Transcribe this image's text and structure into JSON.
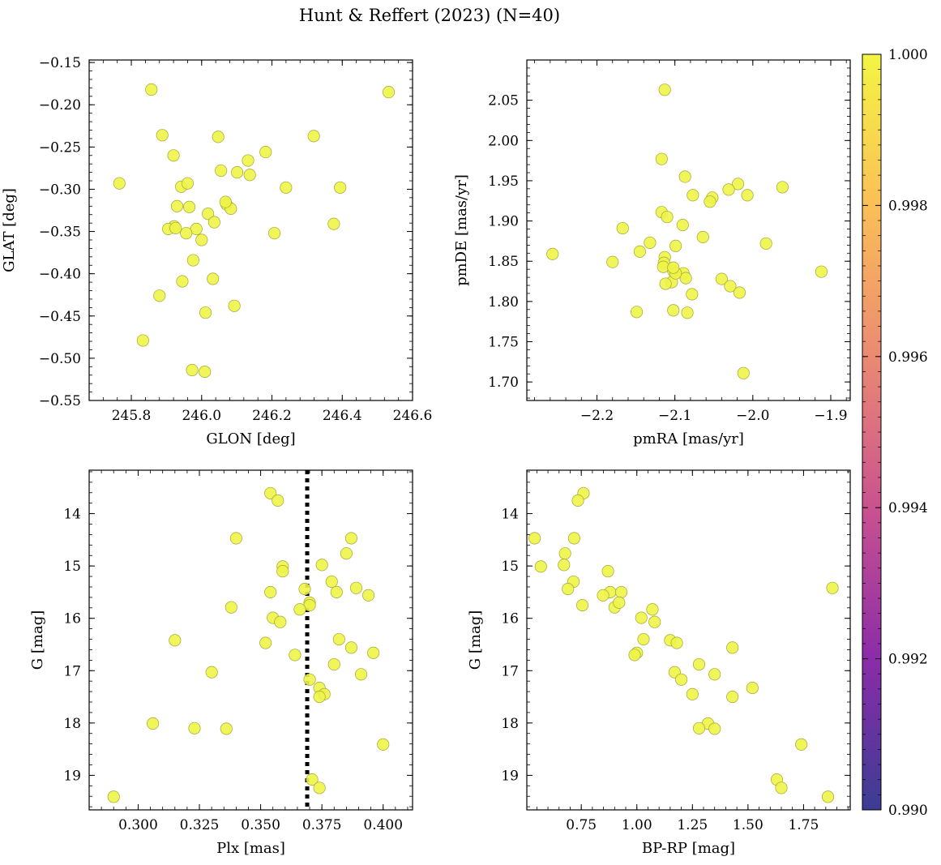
{
  "figure": {
    "title": "Hunt & Reffert (2023) (N=40)"
  },
  "colorbar": {
    "ticks": [
      "1.000",
      "0.998",
      "0.996",
      "0.994",
      "0.992",
      "0.990"
    ],
    "range": [
      0.99,
      1.0
    ],
    "colors": [
      "#3b3d92",
      "#8b2ca8",
      "#c9528f",
      "#ea8a72",
      "#fbbf57",
      "#f3f543"
    ]
  },
  "point_style": {
    "fill": "#eef447",
    "stroke": "#a3a636"
  },
  "chart_data": [
    {
      "type": "scatter",
      "name": "position",
      "xlabel": "GLON [deg]",
      "ylabel": "GLAT [deg]",
      "xlim": [
        245.68,
        246.6
      ],
      "ylim": [
        -0.55,
        -0.147
      ],
      "xticks": [
        "245.8",
        "246.0",
        "246.2",
        "246.4",
        "246.6"
      ],
      "yticks": [
        "−0.15",
        "−0.20",
        "−0.25",
        "−0.30",
        "−0.35",
        "−0.40",
        "−0.45",
        "−0.50",
        "−0.55"
      ],
      "x": [
        245.857,
        246.532,
        245.888,
        246.047,
        246.319,
        245.92,
        246.182,
        246.132,
        245.766,
        246.055,
        246.101,
        246.137,
        245.942,
        245.96,
        246.24,
        246.394,
        245.93,
        245.965,
        246.071,
        246.083,
        246.018,
        246.036,
        245.922,
        245.905,
        245.985,
        246.376,
        245.956,
        246.207,
        246.0,
        245.976,
        246.032,
        245.945,
        245.88,
        246.093,
        246.011,
        245.833,
        245.973,
        246.009,
        245.926,
        246.068
      ],
      "y": [
        -0.182,
        -0.185,
        -0.236,
        -0.238,
        -0.237,
        -0.26,
        -0.256,
        -0.266,
        -0.293,
        -0.278,
        -0.28,
        -0.283,
        -0.297,
        -0.293,
        -0.298,
        -0.298,
        -0.32,
        -0.321,
        -0.318,
        -0.323,
        -0.329,
        -0.339,
        -0.344,
        -0.347,
        -0.347,
        -0.341,
        -0.352,
        -0.352,
        -0.36,
        -0.384,
        -0.406,
        -0.409,
        -0.426,
        -0.438,
        -0.446,
        -0.479,
        -0.514,
        -0.516,
        -0.346,
        -0.315
      ]
    },
    {
      "type": "scatter",
      "name": "proper-motion",
      "xlabel": "pmRA [mas/yr]",
      "ylabel": "pmDE [mas/yr]",
      "xlim": [
        -2.29,
        -1.875
      ],
      "ylim": [
        1.677,
        2.1
      ],
      "xticks": [
        "−2.2",
        "−2.1",
        "−2.0",
        "−1.9"
      ],
      "yticks": [
        "1.70",
        "1.75",
        "1.80",
        "1.85",
        "1.90",
        "1.95",
        "2.00",
        "2.05"
      ],
      "x": [
        -2.113,
        -2.117,
        -2.087,
        -1.962,
        -2.019,
        -2.031,
        -2.007,
        -2.077,
        -2.052,
        -2.055,
        -2.117,
        -2.11,
        -2.09,
        -2.167,
        -2.132,
        -2.064,
        -2.145,
        -2.257,
        -1.983,
        -2.18,
        -2.113,
        -2.114,
        -2.099,
        -2.102,
        -2.104,
        -2.115,
        -2.089,
        -2.086,
        -2.102,
        -2.04,
        -1.912,
        -2.029,
        -2.017,
        -2.078,
        -2.099,
        -2.149,
        -2.084,
        -2.012,
        -2.102,
        -2.112
      ],
      "y": [
        2.063,
        1.977,
        1.955,
        1.942,
        1.946,
        1.939,
        1.932,
        1.932,
        1.929,
        1.924,
        1.911,
        1.905,
        1.895,
        1.891,
        1.873,
        1.88,
        1.862,
        1.859,
        1.872,
        1.849,
        1.855,
        1.848,
        1.869,
        1.838,
        1.824,
        1.843,
        1.835,
        1.829,
        1.789,
        1.828,
        1.837,
        1.819,
        1.811,
        1.809,
        1.835,
        1.787,
        1.786,
        1.711,
        1.842,
        1.822
      ]
    },
    {
      "type": "scatter",
      "name": "plx-magnitude",
      "xlabel": "Plx [mas]",
      "ylabel": "G [mag]",
      "xlim": [
        0.28,
        0.412
      ],
      "ylim": [
        19.66,
        13.17
      ],
      "y_inverted": true,
      "vline": {
        "x": 0.369,
        "style": "dotted"
      },
      "xticks": [
        "0.300",
        "0.325",
        "0.350",
        "0.375",
        "0.400"
      ],
      "yticks": [
        "14",
        "15",
        "16",
        "17",
        "18",
        "19"
      ],
      "x": [
        0.354,
        0.357,
        0.34,
        0.387,
        0.385,
        0.359,
        0.375,
        0.359,
        0.379,
        0.389,
        0.354,
        0.381,
        0.394,
        0.368,
        0.37,
        0.338,
        0.355,
        0.358,
        0.315,
        0.352,
        0.387,
        0.382,
        0.364,
        0.396,
        0.33,
        0.391,
        0.37,
        0.374,
        0.376,
        0.374,
        0.38,
        0.306,
        0.323,
        0.336,
        0.4,
        0.371,
        0.374,
        0.29,
        0.37,
        0.366
      ],
      "y": [
        13.61,
        13.75,
        14.47,
        14.47,
        14.76,
        15.01,
        14.98,
        15.1,
        15.3,
        15.42,
        15.5,
        15.5,
        15.56,
        15.44,
        15.7,
        15.79,
        15.99,
        16.07,
        16.42,
        16.47,
        16.56,
        16.4,
        16.7,
        16.66,
        17.03,
        17.07,
        17.17,
        17.33,
        17.45,
        17.5,
        16.88,
        18.01,
        18.1,
        18.11,
        18.41,
        19.08,
        19.24,
        19.41,
        15.75,
        15.83
      ]
    },
    {
      "type": "scatter",
      "name": "color-magnitude",
      "xlabel": "BP-RP [mag]",
      "ylabel": "G [mag]",
      "xlim": [
        0.505,
        1.96
      ],
      "ylim": [
        19.66,
        13.17
      ],
      "y_inverted": true,
      "xticks": [
        "0.75",
        "1.00",
        "1.25",
        "1.50",
        "1.75"
      ],
      "yticks": [
        "14",
        "15",
        "16",
        "17",
        "18",
        "19"
      ],
      "x": [
        0.76,
        0.735,
        0.54,
        0.718,
        0.677,
        0.568,
        0.672,
        0.87,
        0.715,
        1.88,
        0.69,
        0.88,
        0.93,
        0.848,
        0.755,
        0.9,
        0.92,
        1.07,
        1.02,
        1.08,
        1.03,
        1.15,
        1.18,
        1.43,
        1.0,
        0.99,
        1.17,
        1.28,
        1.2,
        1.35,
        1.25,
        1.52,
        1.43,
        1.32,
        1.28,
        1.35,
        1.74,
        1.63,
        1.65,
        1.86
      ],
      "y": [
        13.61,
        13.75,
        14.47,
        14.47,
        14.76,
        15.01,
        14.98,
        15.1,
        15.3,
        15.42,
        15.44,
        15.5,
        15.5,
        15.56,
        15.75,
        15.79,
        15.7,
        15.83,
        15.99,
        16.07,
        16.4,
        16.42,
        16.47,
        16.56,
        16.66,
        16.7,
        17.03,
        16.88,
        17.17,
        17.07,
        17.45,
        17.33,
        17.5,
        18.01,
        18.1,
        18.11,
        18.41,
        19.08,
        19.24,
        19.41
      ]
    }
  ]
}
